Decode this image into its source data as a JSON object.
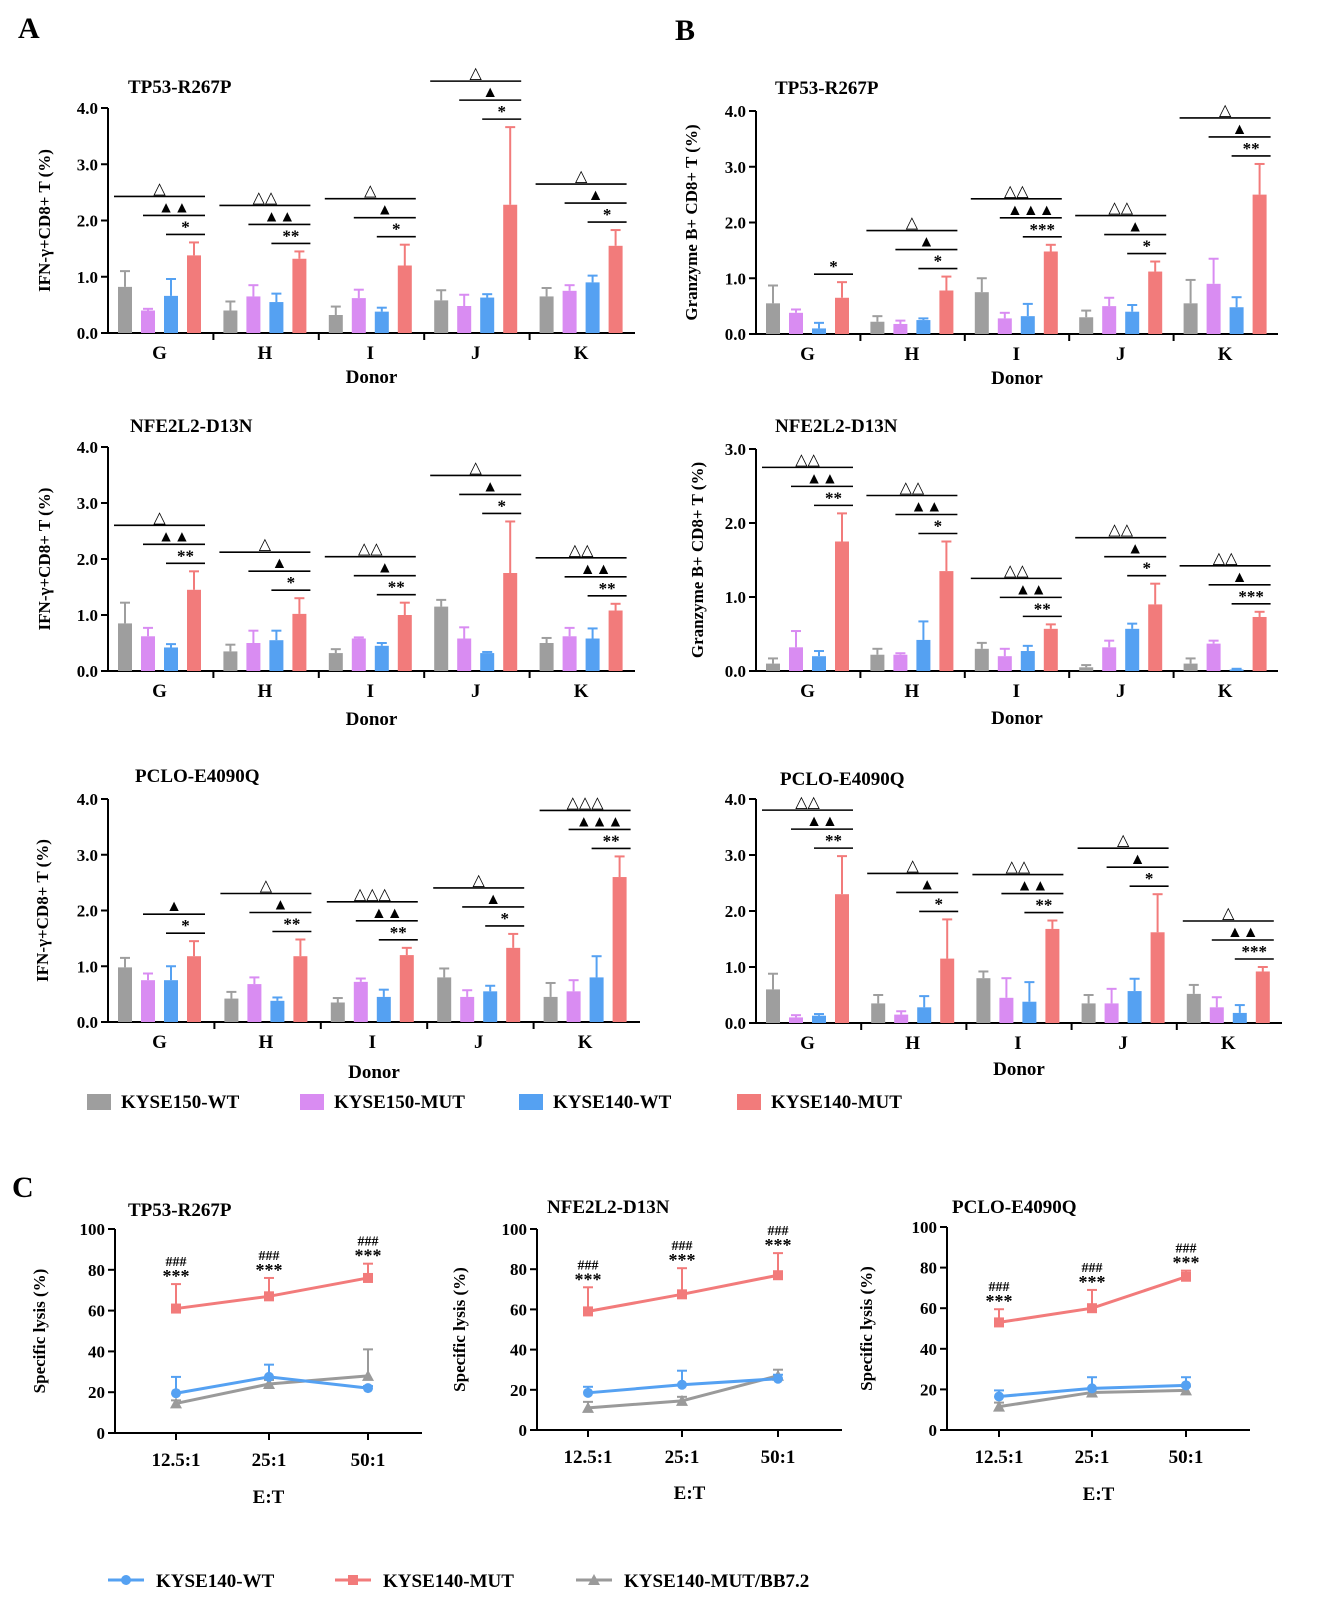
{
  "panel_labels": {
    "a": "A",
    "b": "B",
    "c": "C"
  },
  "colors": {
    "KYSE150-WT": "#9e9e9e",
    "KYSE150-MUT": "#d98cf2",
    "KYSE140-WT": "#55a1f2",
    "KYSE140-MUT": "#f27b7b",
    "KYSE140-MUT/BB7.2": "#9a9a9a"
  },
  "bar_legend": [
    "KYSE150-WT",
    "KYSE150-MUT",
    "KYSE140-WT",
    "KYSE140-MUT"
  ],
  "line_legend": [
    "KYSE140-WT",
    "KYSE140-MUT",
    "KYSE140-MUT/BB7.2"
  ],
  "chart_data": [
    {
      "id": "A1",
      "type": "bar",
      "title": "TP53-R267P",
      "xlabel": "Donor",
      "ylabel": "IFN-γ+CD8+ T (%)",
      "ylim": [
        0,
        4
      ],
      "yticks": [
        "0.0",
        "1.0",
        "2.0",
        "3.0",
        "4.0"
      ],
      "categories": [
        "G",
        "H",
        "I",
        "J",
        "K"
      ],
      "series": [
        {
          "name": "KYSE150-WT",
          "values": [
            0.82,
            0.4,
            0.32,
            0.58,
            0.65
          ],
          "errors": [
            0.28,
            0.16,
            0.15,
            0.18,
            0.15
          ]
        },
        {
          "name": "KYSE150-MUT",
          "values": [
            0.4,
            0.65,
            0.62,
            0.48,
            0.75
          ],
          "errors": [
            0.03,
            0.2,
            0.15,
            0.2,
            0.1
          ]
        },
        {
          "name": "KYSE140-WT",
          "values": [
            0.66,
            0.55,
            0.38,
            0.63,
            0.9
          ],
          "errors": [
            0.3,
            0.15,
            0.07,
            0.06,
            0.12
          ]
        },
        {
          "name": "KYSE140-MUT",
          "values": [
            1.38,
            1.32,
            1.2,
            2.28,
            1.55
          ],
          "errors": [
            0.23,
            0.13,
            0.37,
            1.38,
            0.28
          ]
        }
      ],
      "annotations": [
        {
          "tri": "△",
          "solid": "▲▲",
          "star": "*"
        },
        {
          "tri": "△△",
          "solid": "▲▲",
          "star": "**"
        },
        {
          "tri": "△",
          "solid": "▲",
          "star": "*"
        },
        {
          "tri": "△",
          "solid": "▲",
          "star": "*"
        },
        {
          "tri": "△",
          "solid": "▲",
          "star": "*"
        }
      ]
    },
    {
      "id": "A2",
      "type": "bar",
      "title": "NFE2L2-D13N",
      "xlabel": "Donor",
      "ylabel": "IFN-γ+CD8+ T (%)",
      "ylim": [
        0,
        4
      ],
      "yticks": [
        "0.0",
        "1.0",
        "2.0",
        "3.0",
        "4.0"
      ],
      "categories": [
        "G",
        "H",
        "I",
        "J",
        "K"
      ],
      "series": [
        {
          "name": "KYSE150-WT",
          "values": [
            0.85,
            0.35,
            0.32,
            1.15,
            0.5
          ],
          "errors": [
            0.37,
            0.12,
            0.07,
            0.12,
            0.09
          ]
        },
        {
          "name": "KYSE150-MUT",
          "values": [
            0.62,
            0.5,
            0.58,
            0.58,
            0.62
          ],
          "errors": [
            0.15,
            0.22,
            0.02,
            0.2,
            0.15
          ]
        },
        {
          "name": "KYSE140-WT",
          "values": [
            0.42,
            0.55,
            0.45,
            0.32,
            0.58
          ],
          "errors": [
            0.06,
            0.17,
            0.05,
            0.02,
            0.18
          ]
        },
        {
          "name": "KYSE140-MUT",
          "values": [
            1.45,
            1.02,
            1.0,
            1.75,
            1.08
          ],
          "errors": [
            0.33,
            0.28,
            0.22,
            0.92,
            0.12
          ]
        }
      ],
      "annotations": [
        {
          "tri": "△",
          "solid": "▲▲",
          "star": "**"
        },
        {
          "tri": "△",
          "solid": "▲",
          "star": "*"
        },
        {
          "tri": "△△",
          "solid": "▲",
          "star": "**"
        },
        {
          "tri": "△",
          "solid": "▲",
          "star": "*"
        },
        {
          "tri": "△△",
          "solid": "▲▲",
          "star": "**"
        }
      ]
    },
    {
      "id": "A3",
      "type": "bar",
      "title": "PCLO-E4090Q",
      "xlabel": "Donor",
      "ylabel": "IFN-γ+CD8+ T (%)",
      "ylim": [
        0,
        4
      ],
      "yticks": [
        "0.0",
        "1.0",
        "2.0",
        "3.0",
        "4.0"
      ],
      "categories": [
        "G",
        "H",
        "I",
        "J",
        "K"
      ],
      "series": [
        {
          "name": "KYSE150-WT",
          "values": [
            0.98,
            0.42,
            0.35,
            0.8,
            0.45
          ],
          "errors": [
            0.17,
            0.12,
            0.08,
            0.16,
            0.25
          ]
        },
        {
          "name": "KYSE150-MUT",
          "values": [
            0.75,
            0.68,
            0.72,
            0.45,
            0.55
          ],
          "errors": [
            0.12,
            0.12,
            0.06,
            0.12,
            0.2
          ]
        },
        {
          "name": "KYSE140-WT",
          "values": [
            0.75,
            0.38,
            0.45,
            0.55,
            0.8
          ],
          "errors": [
            0.25,
            0.06,
            0.13,
            0.1,
            0.38
          ]
        },
        {
          "name": "KYSE140-MUT",
          "values": [
            1.18,
            1.18,
            1.2,
            1.33,
            2.6
          ],
          "errors": [
            0.27,
            0.3,
            0.13,
            0.25,
            0.37
          ]
        }
      ],
      "annotations": [
        {
          "tri": "",
          "solid": "▲",
          "star": "*"
        },
        {
          "tri": "△",
          "solid": "▲",
          "star": "**"
        },
        {
          "tri": "△△△",
          "solid": "▲▲",
          "star": "**"
        },
        {
          "tri": "△",
          "solid": "▲",
          "star": "*"
        },
        {
          "tri": "△△△",
          "solid": "▲▲▲",
          "star": "**"
        }
      ]
    },
    {
      "id": "B1",
      "type": "bar",
      "title": "TP53-R267P",
      "xlabel": "Donor",
      "ylabel": "Granzyme B+ CD8+ T (%)",
      "ylim": [
        0,
        4
      ],
      "yticks": [
        "0.0",
        "1.0",
        "2.0",
        "3.0",
        "4.0"
      ],
      "categories": [
        "G",
        "H",
        "I",
        "J",
        "K"
      ],
      "series": [
        {
          "name": "KYSE150-WT",
          "values": [
            0.55,
            0.22,
            0.75,
            0.3,
            0.55
          ],
          "errors": [
            0.32,
            0.1,
            0.25,
            0.12,
            0.42
          ]
        },
        {
          "name": "KYSE150-MUT",
          "values": [
            0.38,
            0.18,
            0.28,
            0.5,
            0.9
          ],
          "errors": [
            0.06,
            0.06,
            0.1,
            0.15,
            0.45
          ]
        },
        {
          "name": "KYSE140-WT",
          "values": [
            0.1,
            0.25,
            0.32,
            0.4,
            0.48
          ],
          "errors": [
            0.1,
            0.03,
            0.22,
            0.12,
            0.18
          ]
        },
        {
          "name": "KYSE140-MUT",
          "values": [
            0.65,
            0.78,
            1.48,
            1.12,
            2.5
          ],
          "errors": [
            0.28,
            0.25,
            0.12,
            0.18,
            0.55
          ]
        }
      ],
      "annotations": [
        {
          "tri": "",
          "solid": "",
          "star": "*"
        },
        {
          "tri": "△",
          "solid": "▲",
          "star": "*"
        },
        {
          "tri": "△△",
          "solid": "▲▲▲",
          "star": "***"
        },
        {
          "tri": "△△",
          "solid": "▲",
          "star": "*"
        },
        {
          "tri": "△",
          "solid": "▲",
          "star": "**"
        }
      ]
    },
    {
      "id": "B2",
      "type": "bar",
      "title": "NFE2L2-D13N",
      "xlabel": "Donor",
      "ylabel": "Granzyme B+ CD8+ T (%)",
      "ylim": [
        0,
        3
      ],
      "yticks": [
        "0.0",
        "1.0",
        "2.0",
        "3.0"
      ],
      "categories": [
        "G",
        "H",
        "I",
        "J",
        "K"
      ],
      "series": [
        {
          "name": "KYSE150-WT",
          "values": [
            0.1,
            0.22,
            0.3,
            0.05,
            0.1
          ],
          "errors": [
            0.07,
            0.08,
            0.08,
            0.03,
            0.07
          ]
        },
        {
          "name": "KYSE150-MUT",
          "values": [
            0.32,
            0.22,
            0.2,
            0.32,
            0.37
          ],
          "errors": [
            0.22,
            0.02,
            0.1,
            0.09,
            0.04
          ]
        },
        {
          "name": "KYSE140-WT",
          "values": [
            0.2,
            0.42,
            0.27,
            0.57,
            0.02
          ],
          "errors": [
            0.07,
            0.25,
            0.07,
            0.07,
            0.01
          ]
        },
        {
          "name": "KYSE140-MUT",
          "values": [
            1.75,
            1.35,
            0.57,
            0.9,
            0.73
          ],
          "errors": [
            0.38,
            0.4,
            0.06,
            0.28,
            0.07
          ]
        }
      ],
      "annotations": [
        {
          "tri": "△△",
          "solid": "▲▲",
          "star": "**"
        },
        {
          "tri": "△△",
          "solid": "▲▲",
          "star": "*"
        },
        {
          "tri": "△△",
          "solid": "▲▲",
          "star": "**"
        },
        {
          "tri": "△△",
          "solid": "▲",
          "star": "*"
        },
        {
          "tri": "△△",
          "solid": "▲",
          "star": "***"
        }
      ]
    },
    {
      "id": "B3",
      "type": "bar",
      "title": "PCLO-E4090Q",
      "xlabel": "Donor",
      "ylabel": "",
      "ylim": [
        0,
        4
      ],
      "yticks": [
        "0.0",
        "1.0",
        "2.0",
        "3.0",
        "4.0"
      ],
      "categories": [
        "G",
        "H",
        "I",
        "J",
        "K"
      ],
      "series": [
        {
          "name": "KYSE150-WT",
          "values": [
            0.6,
            0.35,
            0.8,
            0.35,
            0.52
          ],
          "errors": [
            0.28,
            0.15,
            0.12,
            0.15,
            0.16
          ]
        },
        {
          "name": "KYSE150-MUT",
          "values": [
            0.1,
            0.15,
            0.45,
            0.35,
            0.28
          ],
          "errors": [
            0.04,
            0.06,
            0.35,
            0.26,
            0.18
          ]
        },
        {
          "name": "KYSE140-WT",
          "values": [
            0.13,
            0.28,
            0.38,
            0.57,
            0.18
          ],
          "errors": [
            0.03,
            0.2,
            0.35,
            0.22,
            0.14
          ]
        },
        {
          "name": "KYSE140-MUT",
          "values": [
            2.3,
            1.15,
            1.68,
            1.62,
            0.92
          ],
          "errors": [
            0.68,
            0.7,
            0.15,
            0.68,
            0.08
          ]
        }
      ],
      "annotations": [
        {
          "tri": "△△",
          "solid": "▲▲",
          "star": "**"
        },
        {
          "tri": "△",
          "solid": "▲",
          "star": "*"
        },
        {
          "tri": "△△",
          "solid": "▲▲",
          "star": "**"
        },
        {
          "tri": "△",
          "solid": "▲",
          "star": "*"
        },
        {
          "tri": "△",
          "solid": "▲▲",
          "star": "***"
        }
      ]
    },
    {
      "id": "C1",
      "type": "line",
      "title": "TP53-R267P",
      "xlabel": "E:T",
      "ylabel": "Specific lysis (%)",
      "ylim": [
        0,
        100
      ],
      "yticks": [
        "0",
        "20",
        "40",
        "60",
        "80",
        "100"
      ],
      "categories": [
        "12.5:1",
        "25:1",
        "50:1"
      ],
      "series": [
        {
          "name": "KYSE140-WT",
          "values": [
            19.5,
            27.5,
            22
          ],
          "errors": [
            8,
            6,
            1
          ]
        },
        {
          "name": "KYSE140-MUT",
          "values": [
            61,
            67,
            76
          ],
          "errors": [
            12,
            9,
            7
          ]
        },
        {
          "name": "KYSE140-MUT/BB7.2",
          "values": [
            14.5,
            24,
            28
          ],
          "errors": [
            1.5,
            2,
            13
          ]
        }
      ],
      "annotations": [
        {
          "hash": "###",
          "star": "***"
        },
        {
          "hash": "###",
          "star": "***"
        },
        {
          "hash": "###",
          "star": "***"
        }
      ]
    },
    {
      "id": "C2",
      "type": "line",
      "title": "NFE2L2-D13N",
      "xlabel": "E:T",
      "ylabel": "Specific lysis (%)",
      "ylim": [
        0,
        100
      ],
      "yticks": [
        "0",
        "20",
        "40",
        "60",
        "80",
        "100"
      ],
      "categories": [
        "12.5:1",
        "25:1",
        "50:1"
      ],
      "series": [
        {
          "name": "KYSE140-WT",
          "values": [
            18.5,
            22.5,
            25.5
          ],
          "errors": [
            3,
            7,
            2
          ]
        },
        {
          "name": "KYSE140-MUT",
          "values": [
            59,
            67.5,
            77
          ],
          "errors": [
            12,
            13,
            11
          ]
        },
        {
          "name": "KYSE140-MUT/BB7.2",
          "values": [
            11,
            14.5,
            27
          ],
          "errors": [
            3,
            2,
            3
          ]
        }
      ],
      "annotations": [
        {
          "hash": "###",
          "star": "***"
        },
        {
          "hash": "###",
          "star": "***"
        },
        {
          "hash": "###",
          "star": "***"
        }
      ]
    },
    {
      "id": "C3",
      "type": "line",
      "title": "PCLO-E4090Q",
      "xlabel": "E:T",
      "ylabel": "Specific lysis (%)",
      "ylim": [
        0,
        100
      ],
      "yticks": [
        "0",
        "20",
        "40",
        "60",
        "80",
        "100"
      ],
      "categories": [
        "12.5:1",
        "25:1",
        "50:1"
      ],
      "series": [
        {
          "name": "KYSE140-WT",
          "values": [
            16.5,
            20.5,
            22
          ],
          "errors": [
            3,
            5.5,
            4
          ]
        },
        {
          "name": "KYSE140-MUT",
          "values": [
            53,
            60,
            75.5
          ],
          "errors": [
            6.5,
            9,
            3
          ]
        },
        {
          "name": "KYSE140-MUT/BB7.2",
          "values": [
            11.5,
            18.5,
            19.5
          ],
          "errors": [
            2,
            2,
            2
          ]
        }
      ],
      "annotations": [
        {
          "hash": "###",
          "star": "***"
        },
        {
          "hash": "###",
          "star": "***"
        },
        {
          "hash": "###",
          "star": "***"
        }
      ]
    }
  ]
}
